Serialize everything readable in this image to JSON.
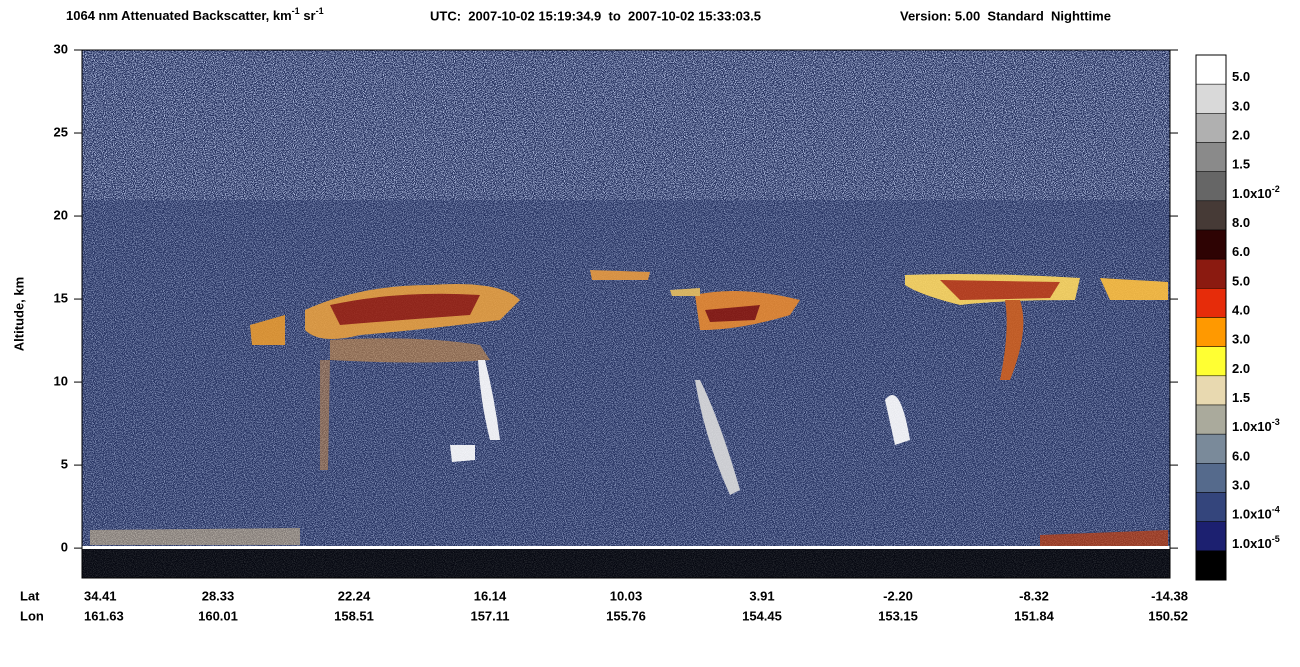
{
  "chart_data": {
    "type": "heatmap",
    "title": {
      "text1": "1064 nm Attenuated Backscatter, km",
      "sup1": "-1",
      "text2": "sr",
      "sup2": "-1",
      "utc": "UTC:  2007-10-02 15:19:34.9  to  2007-10-02 15:33:03.5",
      "version": "Version: 5.00  Standard  Nighttime"
    },
    "y_label": "Altitude, km",
    "ylim": [
      -1.8,
      30
    ],
    "yticks": [
      0,
      5,
      10,
      15,
      20,
      25,
      30
    ],
    "x_row_labels": [
      "Lat",
      "Lon"
    ],
    "x_categories": [
      {
        "lat": "34.41",
        "lon": "161.63"
      },
      {
        "lat": "28.33",
        "lon": "160.01"
      },
      {
        "lat": "22.24",
        "lon": "158.51"
      },
      {
        "lat": "16.14",
        "lon": "157.11"
      },
      {
        "lat": "10.03",
        "lon": "155.76"
      },
      {
        "lat": "3.91",
        "lon": "154.45"
      },
      {
        "lat": "-2.20",
        "lon": "153.15"
      },
      {
        "lat": "-8.32",
        "lon": "151.84"
      },
      {
        "lat": "-14.38",
        "lon": "150.52"
      }
    ],
    "colorbar": {
      "colors": [
        "#ffffff",
        "#d9d9d9",
        "#b0b0b0",
        "#8a8a8a",
        "#666666",
        "#463a36",
        "#2e0303",
        "#8b1a10",
        "#e62c0a",
        "#ff9900",
        "#ffff33",
        "#e8d9b0",
        "#aaaa9c",
        "#7a8a9a",
        "#556a8c",
        "#34457c",
        "#1c2070",
        "#000000"
      ],
      "labels": [
        {
          "text": "5.0"
        },
        {
          "text": "3.0"
        },
        {
          "text": "2.0"
        },
        {
          "text": "1.5"
        },
        {
          "text": "1.0x10",
          "exp": "-2"
        },
        {
          "text": "8.0"
        },
        {
          "text": "6.0"
        },
        {
          "text": "5.0"
        },
        {
          "text": "4.0"
        },
        {
          "text": "3.0"
        },
        {
          "text": "2.0"
        },
        {
          "text": "1.5"
        },
        {
          "text": "1.0x10",
          "exp": "-3"
        },
        {
          "text": "6.0"
        },
        {
          "text": "3.0"
        },
        {
          "text": "1.0x10",
          "exp": "-4"
        },
        {
          "text": "1.0x10",
          "exp": "-5"
        }
      ]
    }
  }
}
